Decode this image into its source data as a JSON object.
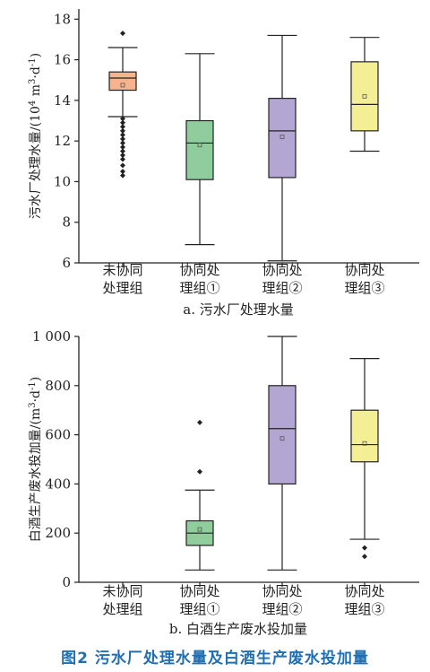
{
  "figure_caption": "图2   污水厂处理水量及白酒生产废水投加量",
  "colors": {
    "axis": "#222222",
    "caption": "#1f6fb2",
    "boxes": [
      "#f7b38e",
      "#8fce9c",
      "#b3a6d3",
      "#f4ef95"
    ]
  },
  "chart_data": [
    {
      "type": "box",
      "subtitle": "a. 污水厂处理水量",
      "ylabel_main": "污水厂处理水量/(10",
      "ylabel_sup1": "4",
      "ylabel_mid": " m",
      "ylabel_sup2": "3",
      "ylabel_mid2": "·d",
      "ylabel_sup3": "-1",
      "ylabel_end": ")",
      "ylim": [
        6,
        18.5
      ],
      "yticks": [
        6,
        8,
        10,
        12,
        14,
        16,
        18
      ],
      "ytick_labels": [
        "6",
        "8",
        "10",
        "12",
        "14",
        "16",
        "18"
      ],
      "categories": [
        {
          "line1": "未协同",
          "line2": "处理组"
        },
        {
          "line1": "协同处",
          "line2": "理组①"
        },
        {
          "line1": "协同处",
          "line2": "理组②"
        },
        {
          "line1": "协同处",
          "line2": "理组③"
        }
      ],
      "boxes": [
        {
          "whisker_low": 13.2,
          "q1": 14.5,
          "median": 15.1,
          "q3": 15.4,
          "whisker_high": 16.6,
          "mean": 14.75,
          "outliers": [
            17.3,
            13.1,
            12.9,
            12.7,
            12.5,
            12.3,
            12.1,
            11.9,
            11.7,
            11.5,
            11.3,
            11.1,
            10.8,
            10.5,
            10.3
          ]
        },
        {
          "whisker_low": 6.9,
          "q1": 10.1,
          "median": 11.9,
          "q3": 13.0,
          "whisker_high": 16.3,
          "mean": 11.8,
          "outliers": []
        },
        {
          "whisker_low": 6.1,
          "q1": 10.2,
          "median": 12.5,
          "q3": 14.1,
          "whisker_high": 17.2,
          "mean": 12.2,
          "outliers": []
        },
        {
          "whisker_low": 11.5,
          "q1": 12.5,
          "median": 13.8,
          "q3": 15.9,
          "whisker_high": 17.1,
          "mean": 14.2,
          "outliers": []
        }
      ]
    },
    {
      "type": "box",
      "subtitle": "b. 白酒生产废水投加量",
      "ylabel_main": "白酒生产废水投加量/(m",
      "ylabel_sup1": "3",
      "ylabel_mid": "·d",
      "ylabel_sup2": "-1",
      "ylabel_end": ")",
      "ylim": [
        0,
        1000
      ],
      "yticks": [
        0,
        200,
        400,
        600,
        800,
        1000
      ],
      "ytick_labels": [
        "0",
        "200",
        "400",
        "600",
        "800",
        "1 000"
      ],
      "categories": [
        {
          "line1": "未协同",
          "line2": "处理组"
        },
        {
          "line1": "协同处",
          "line2": "理组①"
        },
        {
          "line1": "协同处",
          "line2": "理组②"
        },
        {
          "line1": "协同处",
          "line2": "理组③"
        }
      ],
      "boxes": [
        null,
        {
          "whisker_low": 50,
          "q1": 150,
          "median": 200,
          "q3": 250,
          "whisker_high": 375,
          "mean": 215,
          "outliers": [
            450,
            650
          ]
        },
        {
          "whisker_low": 50,
          "q1": 400,
          "median": 625,
          "q3": 800,
          "whisker_high": 1000,
          "mean": 585,
          "outliers": []
        },
        {
          "whisker_low": 175,
          "q1": 490,
          "median": 560,
          "q3": 700,
          "whisker_high": 910,
          "mean": 565,
          "outliers": [
            140,
            105
          ]
        }
      ]
    }
  ]
}
